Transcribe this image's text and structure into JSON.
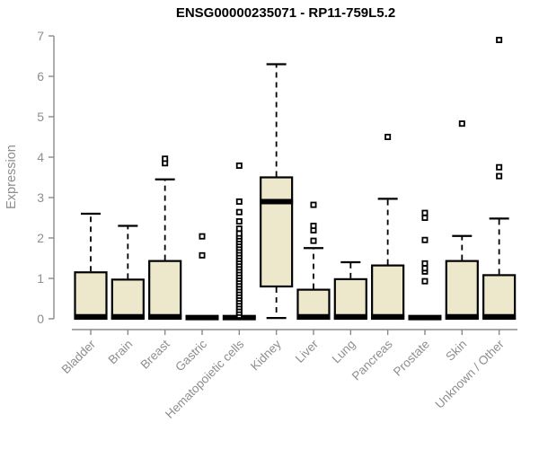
{
  "window": {
    "title": "Gene expression boxplot"
  },
  "colors": {
    "box_fill": "#ede7cc",
    "box_border": "#000000",
    "median": "#000000",
    "whisker": "#000000",
    "outlier": "#000000",
    "axis": "#8a8a8a",
    "tick_label": "#8e8e8e",
    "title": "#000000",
    "background": "#ffffff"
  },
  "chart_data": {
    "type": "boxplot",
    "title": "ENSG00000235071 - RP11-759L5.2",
    "xlabel": "",
    "ylabel": "Expression",
    "ylim": [
      0,
      7
    ],
    "yticks": [
      0,
      1,
      2,
      3,
      4,
      5,
      6,
      7
    ],
    "grid": false,
    "legend": "none",
    "categories": [
      "Bladder",
      "Brain",
      "Breast",
      "Gastric",
      "Hematopoietic cells",
      "Kidney",
      "Liver",
      "Lung",
      "Pancreas",
      "Prostate",
      "Skin",
      "Unknown / Other"
    ],
    "series": [
      {
        "name": "Bladder",
        "q1": 0,
        "median": 0.05,
        "q3": 1.15,
        "whisker_low": 0,
        "whisker_high": 2.6,
        "outliers": []
      },
      {
        "name": "Brain",
        "q1": 0,
        "median": 0.05,
        "q3": 0.97,
        "whisker_low": 0,
        "whisker_high": 2.3,
        "outliers": []
      },
      {
        "name": "Breast",
        "q1": 0,
        "median": 0.05,
        "q3": 1.43,
        "whisker_low": 0,
        "whisker_high": 3.45,
        "outliers": [
          3.85,
          3.96
        ]
      },
      {
        "name": "Gastric",
        "q1": 0,
        "median": 0.03,
        "q3": 0.05,
        "whisker_low": 0,
        "whisker_high": 0.05,
        "outliers": [
          1.57,
          2.04
        ]
      },
      {
        "name": "Hematopoietic cells",
        "q1": 0,
        "median": 0.03,
        "q3": 0.05,
        "whisker_low": 0,
        "whisker_high": 0.05,
        "outliers": [
          0.08,
          0.15,
          0.22,
          0.29,
          0.36,
          0.43,
          0.5,
          0.57,
          0.64,
          0.71,
          0.78,
          0.85,
          0.92,
          0.99,
          1.06,
          1.13,
          1.2,
          1.27,
          1.34,
          1.41,
          1.48,
          1.55,
          1.62,
          1.69,
          1.76,
          1.83,
          1.9,
          1.97,
          2.04,
          2.11,
          2.23,
          2.41,
          2.64,
          2.9,
          3.79
        ]
      },
      {
        "name": "Kidney",
        "q1": 0.8,
        "median": 2.9,
        "q3": 3.5,
        "whisker_low": 0.02,
        "whisker_high": 6.3,
        "outliers": []
      },
      {
        "name": "Liver",
        "q1": 0,
        "median": 0.05,
        "q3": 0.72,
        "whisker_low": 0,
        "whisker_high": 1.75,
        "outliers": [
          1.93,
          2.19,
          2.3,
          2.82
        ]
      },
      {
        "name": "Lung",
        "q1": 0,
        "median": 0.05,
        "q3": 0.98,
        "whisker_low": 0,
        "whisker_high": 1.4,
        "outliers": []
      },
      {
        "name": "Pancreas",
        "q1": 0,
        "median": 0.05,
        "q3": 1.32,
        "whisker_low": 0,
        "whisker_high": 2.97,
        "outliers": [
          4.5
        ]
      },
      {
        "name": "Prostate",
        "q1": 0,
        "median": 0.03,
        "q3": 0.05,
        "whisker_low": 0,
        "whisker_high": 0.05,
        "outliers": [
          0.93,
          1.17,
          1.25,
          1.37,
          1.95,
          2.5,
          2.62
        ]
      },
      {
        "name": "Skin",
        "q1": 0,
        "median": 0.05,
        "q3": 1.43,
        "whisker_low": 0,
        "whisker_high": 2.05,
        "outliers": [
          4.83
        ]
      },
      {
        "name": "Unknown / Other",
        "q1": 0,
        "median": 0.05,
        "q3": 1.08,
        "whisker_low": 0,
        "whisker_high": 2.48,
        "outliers": [
          3.53,
          3.75,
          6.9
        ]
      }
    ]
  }
}
